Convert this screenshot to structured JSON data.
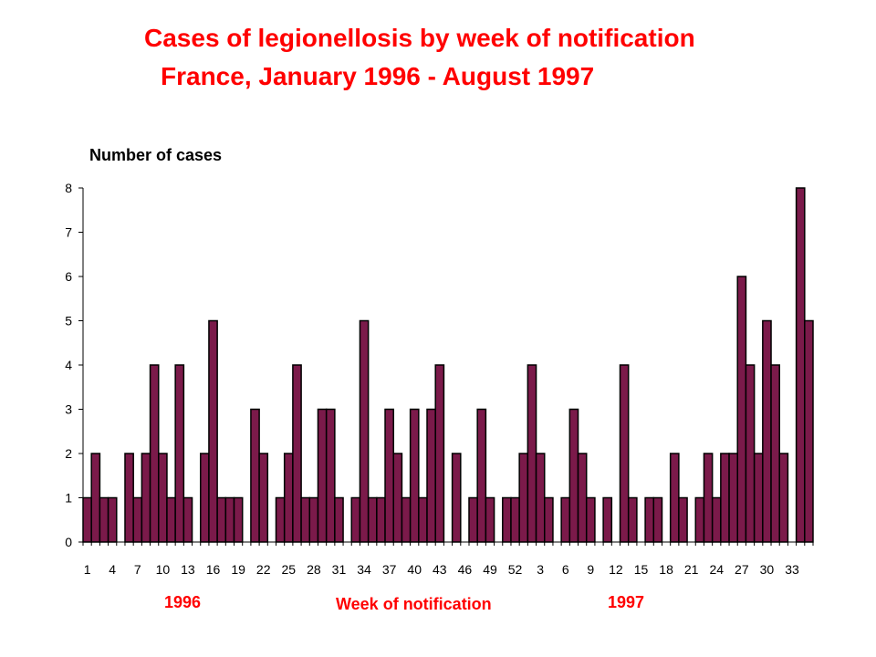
{
  "chart_data": {
    "type": "bar",
    "title": "Cases of legionellosis by week of notification",
    "subtitle": "France, January 1996 - August 1997",
    "ylabel": "Number of cases",
    "xlabel": "Week of notification",
    "year_labels": [
      "1996",
      "1997"
    ],
    "ylim": [
      0,
      8
    ],
    "yticks": [
      0,
      1,
      2,
      3,
      4,
      5,
      6,
      7,
      8
    ],
    "xtick_labels": [
      "1",
      "4",
      "7",
      "10",
      "13",
      "16",
      "19",
      "22",
      "25",
      "28",
      "31",
      "34",
      "37",
      "40",
      "43",
      "46",
      "49",
      "52",
      "3",
      "6",
      "9",
      "12",
      "15",
      "18",
      "21",
      "24",
      "27",
      "30",
      "33"
    ],
    "categories": [
      "1",
      "2",
      "3",
      "4",
      "5",
      "6",
      "7",
      "8",
      "9",
      "10",
      "11",
      "12",
      "13",
      "14",
      "15",
      "16",
      "17",
      "18",
      "19",
      "20",
      "21",
      "22",
      "23",
      "24",
      "25",
      "26",
      "27",
      "28",
      "29",
      "30",
      "31",
      "32",
      "33",
      "34",
      "35",
      "36",
      "37",
      "38",
      "39",
      "40",
      "41",
      "42",
      "43",
      "44",
      "45",
      "46",
      "47",
      "48",
      "49",
      "50",
      "51",
      "52",
      "1",
      "2",
      "3",
      "4",
      "5",
      "6",
      "7",
      "8",
      "9",
      "10",
      "11",
      "12",
      "13",
      "14",
      "15",
      "16",
      "17",
      "18",
      "19",
      "20",
      "21",
      "22",
      "23",
      "24",
      "25",
      "26",
      "27",
      "28",
      "29",
      "30",
      "31",
      "32",
      "33",
      "34",
      "35"
    ],
    "values": [
      1,
      2,
      1,
      1,
      0,
      2,
      1,
      2,
      4,
      2,
      1,
      4,
      1,
      0,
      2,
      5,
      1,
      1,
      1,
      0,
      3,
      2,
      0,
      1,
      2,
      4,
      1,
      1,
      3,
      3,
      1,
      0,
      1,
      5,
      1,
      1,
      3,
      2,
      1,
      3,
      1,
      3,
      4,
      0,
      2,
      0,
      1,
      3,
      1,
      0,
      1,
      1,
      2,
      4,
      2,
      1,
      0,
      1,
      3,
      2,
      1,
      0,
      1,
      0,
      4,
      1,
      0,
      1,
      1,
      0,
      2,
      1,
      0,
      1,
      2,
      1,
      2,
      2,
      6,
      4,
      2,
      5,
      4,
      2,
      0,
      8,
      5
    ],
    "bar_color": "#7b1a4a"
  }
}
